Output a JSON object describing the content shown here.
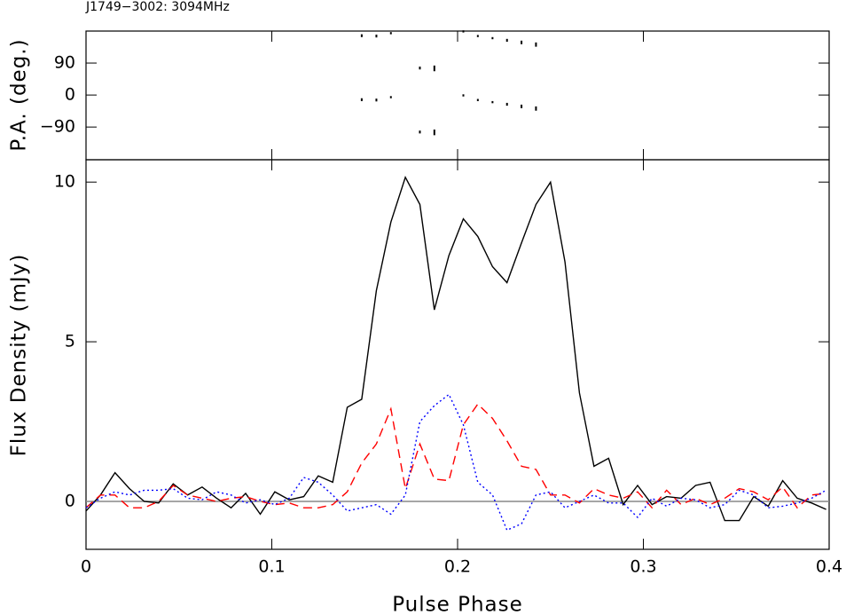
{
  "chart_data": [
    {
      "type": "scatter",
      "title": "J1749−3002: 3094MHz",
      "y_label": "P.A. (deg.)",
      "x": [
        0.1484,
        0.1563,
        0.1641,
        0.1797,
        0.1875,
        0.2031,
        0.2109,
        0.2188,
        0.2266,
        0.2344,
        0.2422
      ],
      "series": [
        {
          "color": "#000000",
          "values": [
            -13,
            -14,
            -6,
            -104,
            -105,
            -1,
            -14,
            -20,
            -26,
            -32,
            -38
          ],
          "errors": [
            4,
            4,
            3,
            4,
            8,
            3,
            3,
            3,
            4,
            5,
            6
          ]
        },
        {
          "color": "#000000",
          "values": [
            167,
            166,
            174,
            76,
            75,
            179,
            166,
            160,
            154,
            148,
            142
          ],
          "errors": [
            4,
            4,
            3,
            4,
            8,
            3,
            3,
            3,
            4,
            5,
            6
          ]
        }
      ],
      "xlim": [
        0,
        0.4
      ],
      "xticks": [
        0,
        0.1,
        0.2,
        0.3,
        0.4
      ],
      "ylim": [
        -182,
        180
      ],
      "yticks": [
        {
          "value": -90,
          "label": "−90"
        },
        0,
        90
      ]
    },
    {
      "type": "line",
      "x_label": "Pulse Phase",
      "y_label": "Flux Density (mJy)",
      "x": [
        0,
        0.0078,
        0.0156,
        0.0234,
        0.0313,
        0.0391,
        0.0469,
        0.0547,
        0.0625,
        0.0703,
        0.0781,
        0.0859,
        0.0938,
        0.1016,
        0.1094,
        0.1172,
        0.125,
        0.1328,
        0.1406,
        0.1484,
        0.1563,
        0.1641,
        0.1719,
        0.1797,
        0.1875,
        0.1953,
        0.2031,
        0.2109,
        0.2188,
        0.2266,
        0.2344,
        0.2422,
        0.25,
        0.2578,
        0.2656,
        0.2734,
        0.2813,
        0.2891,
        0.2969,
        0.3047,
        0.3125,
        0.3203,
        0.3281,
        0.3359,
        0.3438,
        0.3516,
        0.3594,
        0.3672,
        0.375,
        0.3828,
        0.3906,
        0.3984
      ],
      "series": [
        {
          "color": "#000000",
          "dash": "none",
          "values": [
            -0.3,
            0.2,
            0.9,
            0.4,
            0.0,
            -0.05,
            0.55,
            0.2,
            0.45,
            0.1,
            -0.2,
            0.25,
            -0.4,
            0.3,
            0.05,
            0.15,
            0.8,
            0.6,
            2.95,
            3.2,
            6.6,
            8.75,
            10.15,
            9.3,
            6.0,
            7.7,
            8.85,
            8.3,
            7.35,
            6.85,
            8.1,
            9.3,
            10.0,
            7.5,
            3.4,
            1.1,
            1.35,
            -0.1,
            0.5,
            -0.1,
            0.15,
            0.1,
            0.5,
            0.6,
            -0.6,
            -0.6,
            0.15,
            -0.15,
            0.65,
            0.1,
            -0.05,
            -0.25
          ]
        },
        {
          "color": "#ff0000",
          "dash": "10,6",
          "values": [
            -0.2,
            0.2,
            0.2,
            -0.2,
            -0.2,
            0.0,
            0.5,
            0.2,
            0.1,
            0.0,
            0.1,
            0.15,
            0.0,
            -0.1,
            -0.05,
            -0.2,
            -0.2,
            -0.1,
            0.3,
            1.2,
            1.8,
            2.9,
            0.4,
            1.8,
            0.7,
            0.65,
            2.4,
            3.05,
            2.6,
            1.9,
            1.1,
            1.0,
            0.2,
            0.2,
            -0.05,
            0.4,
            0.2,
            0.1,
            0.3,
            -0.2,
            0.35,
            -0.1,
            0.1,
            -0.1,
            0.1,
            0.4,
            0.3,
            0.05,
            0.45,
            -0.2,
            0.2,
            0.25
          ]
        },
        {
          "color": "#0000ff",
          "dash": "2,3",
          "values": [
            -0.2,
            0.1,
            0.3,
            0.2,
            0.35,
            0.35,
            0.4,
            0.1,
            0.05,
            0.3,
            0.2,
            -0.05,
            0.05,
            -0.1,
            0.1,
            0.75,
            0.6,
            0.2,
            -0.3,
            -0.2,
            -0.1,
            -0.4,
            0.2,
            2.5,
            3.0,
            3.35,
            2.4,
            0.6,
            0.2,
            -0.9,
            -0.7,
            0.2,
            0.3,
            -0.2,
            0.0,
            0.2,
            -0.05,
            -0.05,
            -0.5,
            0.1,
            -0.15,
            0.1,
            0.05,
            -0.2,
            -0.1,
            0.35,
            0.2,
            -0.2,
            -0.15,
            -0.05,
            0.1,
            0.35
          ]
        }
      ],
      "baseline": 0,
      "xlim": [
        0,
        0.4
      ],
      "xticks": [
        0,
        0.1,
        0.2,
        0.3,
        0.4
      ],
      "ylim": [
        -1.5,
        10.7
      ],
      "yticks": [
        0,
        5,
        10
      ]
    }
  ]
}
